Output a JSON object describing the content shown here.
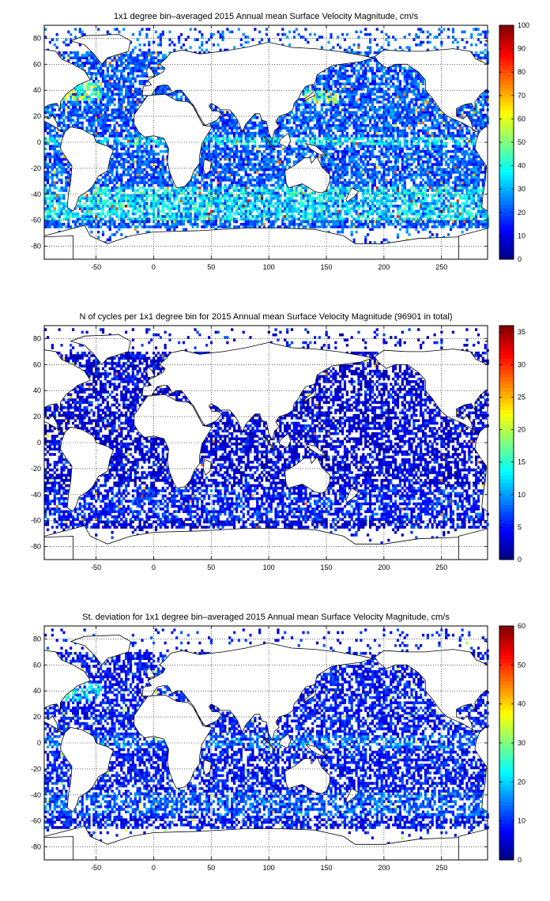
{
  "figure": {
    "background": "#ffffff",
    "land_color": "#ffffff",
    "coast_color": "#000000",
    "grid_color": "#000000"
  },
  "colormap": "jet",
  "chart_data": [
    {
      "type": "heatmap",
      "title": "1x1 degree bin–averaged 2015 Annual mean Surface Velocity Magnitude, cm/s",
      "xlabel": "",
      "ylabel": "",
      "xlim": [
        -95,
        290
      ],
      "ylim": [
        -90,
        90
      ],
      "xticks": [
        -50,
        0,
        50,
        100,
        150,
        200,
        250
      ],
      "yticks": [
        -80,
        -60,
        -40,
        -20,
        0,
        20,
        40,
        60,
        80
      ],
      "grid": true,
      "colorbar": {
        "min": 0,
        "max": 100,
        "ticks": [
          0,
          10,
          20,
          30,
          40,
          50,
          60,
          70,
          80,
          90,
          100
        ]
      },
      "field": "mean",
      "cell_degrees": 1
    },
    {
      "type": "heatmap",
      "title": "N of cycles per 1x1 degree bin for 2015 Annual mean Surface Velocity Magnitude (96901 in total)",
      "xlabel": "",
      "ylabel": "",
      "xlim": [
        -95,
        290
      ],
      "ylim": [
        -90,
        90
      ],
      "xticks": [
        -50,
        0,
        50,
        100,
        150,
        200,
        250
      ],
      "yticks": [
        -80,
        -60,
        -40,
        -20,
        0,
        20,
        40,
        60,
        80
      ],
      "grid": true,
      "colorbar": {
        "min": 0,
        "max": 36,
        "ticks": [
          0,
          5,
          10,
          15,
          20,
          25,
          30,
          35
        ]
      },
      "field": "count",
      "total": 96901,
      "cell_degrees": 1
    },
    {
      "type": "heatmap",
      "title": "St. deviation for 1x1 degree bin–averaged 2015 Annual mean Surface Velocity Magnitude, cm/s",
      "xlabel": "",
      "ylabel": "",
      "xlim": [
        -95,
        290
      ],
      "ylim": [
        -90,
        90
      ],
      "xticks": [
        -50,
        0,
        50,
        100,
        150,
        200,
        250
      ],
      "yticks": [
        -80,
        -60,
        -40,
        -20,
        0,
        20,
        40,
        60,
        80
      ],
      "grid": true,
      "colorbar": {
        "min": 0,
        "max": 60,
        "ticks": [
          0,
          10,
          20,
          30,
          40,
          50,
          60
        ]
      },
      "field": "std",
      "cell_degrees": 1
    }
  ]
}
